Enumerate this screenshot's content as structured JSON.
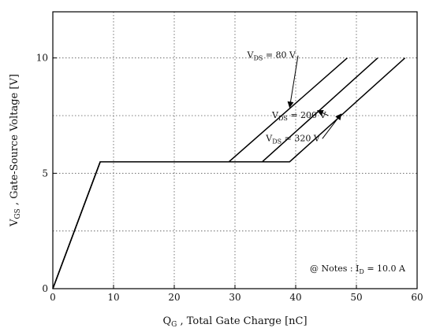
{
  "chart_data": {
    "type": "line",
    "title": "",
    "xlabel": "Q_G , Total Gate Charge [nC]",
    "ylabel": "V_GS , Gate-Source Voltage [V]",
    "xlim": [
      0,
      60
    ],
    "ylim": [
      0,
      12
    ],
    "x_ticks": [
      0,
      10,
      20,
      30,
      40,
      50,
      60
    ],
    "y_ticks": [
      0,
      5,
      10
    ],
    "grid": true,
    "series": [
      {
        "name": "V_DS = 80 V",
        "points": [
          [
            0,
            0
          ],
          [
            7.8,
            5.5
          ],
          [
            29.0,
            5.5
          ],
          [
            48.5,
            10.0
          ]
        ]
      },
      {
        "name": "V_DS = 200 V",
        "points": [
          [
            0,
            0
          ],
          [
            7.8,
            5.5
          ],
          [
            34.5,
            5.5
          ],
          [
            53.5,
            10.0
          ]
        ]
      },
      {
        "name": "V_DS = 320 V",
        "points": [
          [
            0,
            0
          ],
          [
            7.8,
            5.5
          ],
          [
            39.0,
            5.5
          ],
          [
            58.0,
            10.0
          ]
        ]
      }
    ],
    "annotations": [
      {
        "label": "V_DS = 80 V",
        "x": 40.0,
        "y": 10.0
      },
      {
        "label": "V_DS = 200 V",
        "x": 45.0,
        "y": 7.4
      },
      {
        "label": "V_DS = 320 V",
        "x": 44.0,
        "y": 6.4
      }
    ],
    "note": "@ Notes : I_D = 10.0 A"
  }
}
